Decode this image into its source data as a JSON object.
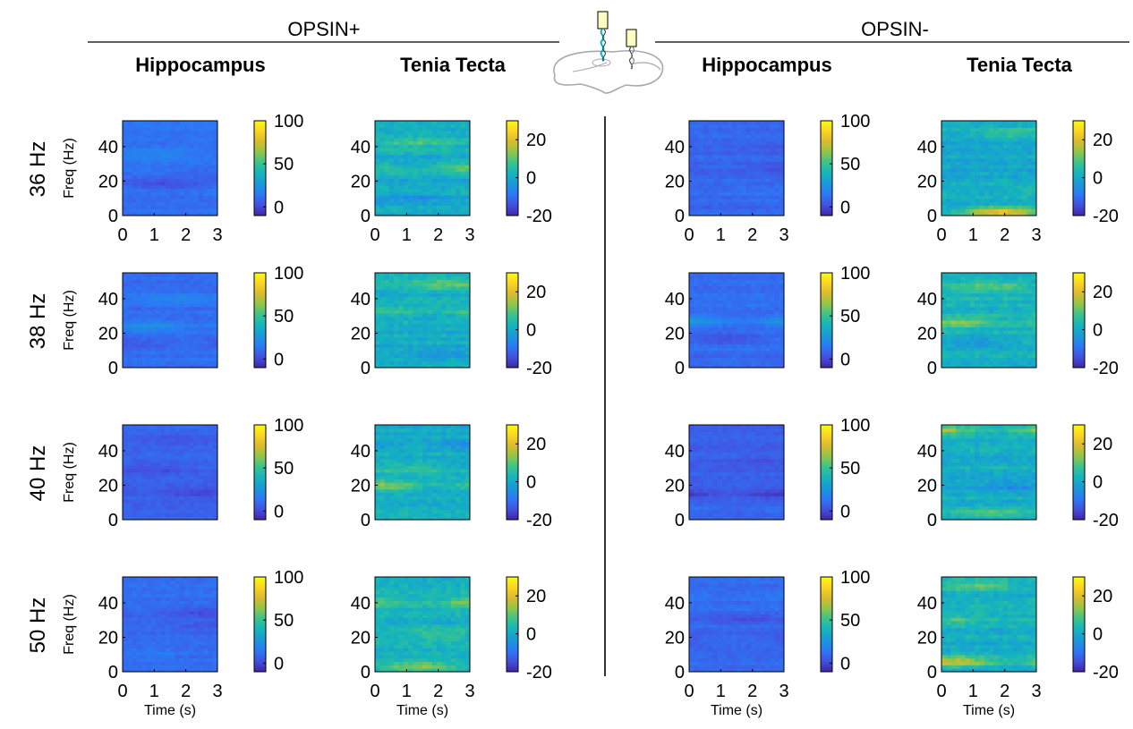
{
  "headers": {
    "groups": [
      "OPSIN+",
      "OPSIN-"
    ],
    "columns": [
      "Hippocampus",
      "Tenia Tecta",
      "Hippocampus",
      "Tenia Tecta"
    ],
    "rows": [
      "36 Hz",
      "38 Hz",
      "40 Hz",
      "50 Hz"
    ]
  },
  "colors": {
    "colormap": [
      "#3e26a8",
      "#4450e0",
      "#2b79f6",
      "#1a98d9",
      "#14b4be",
      "#38c38e",
      "#8fc64a",
      "#d9bb2e",
      "#fbd424",
      "#f9fb0e"
    ]
  },
  "icons": {
    "illustration": "rodent-brain-electrode-icon"
  },
  "chart_data": {
    "type": "heatmap",
    "xlabel": "Time (s)",
    "ylabel": "Freq (Hz)",
    "xlim": [
      0,
      3
    ],
    "ylim": [
      0,
      55
    ],
    "x_ticks": [
      "0",
      "1",
      "2",
      "3"
    ],
    "y_ticks": [
      "0",
      "20",
      "40"
    ],
    "colorbars": {
      "hippocampus": {
        "range": [
          -10,
          100
        ],
        "ticks": [
          "0",
          "50",
          "100"
        ]
      },
      "tenia_tecta": {
        "range": [
          -20,
          30
        ],
        "ticks": [
          "-20",
          "0",
          "20"
        ]
      }
    },
    "panels": [
      {
        "row": "36 Hz",
        "column": "Hippocampus",
        "group": "OPSIN+",
        "base": 12,
        "bands": [
          {
            "freq": 18,
            "delta": -9
          },
          {
            "freq": 36,
            "delta": 9
          },
          {
            "freq": 26,
            "delta": -4
          }
        ]
      },
      {
        "row": "36 Hz",
        "column": "Tenia Tecta",
        "group": "OPSIN+",
        "base": 1,
        "bands": [
          {
            "freq": 28,
            "delta": 11
          },
          {
            "freq": 42,
            "delta": 6
          },
          {
            "freq": 10,
            "delta": -5
          }
        ]
      },
      {
        "row": "36 Hz",
        "column": "Hippocampus",
        "group": "OPSIN-",
        "base": 9,
        "bands": [
          {
            "freq": 28,
            "delta": -5
          },
          {
            "freq": 40,
            "delta": -4
          },
          {
            "freq": 14,
            "delta": 4
          }
        ]
      },
      {
        "row": "36 Hz",
        "column": "Tenia Tecta",
        "group": "OPSIN-",
        "base": 0,
        "bands": [
          {
            "freq": 48,
            "delta": 8
          },
          {
            "freq": 14,
            "delta": 5
          },
          {
            "freq": 2,
            "delta": 22
          }
        ]
      },
      {
        "row": "38 Hz",
        "column": "Hippocampus",
        "group": "OPSIN+",
        "base": 11,
        "bands": [
          {
            "freq": 14,
            "delta": -7
          },
          {
            "freq": 24,
            "delta": 12
          },
          {
            "freq": 40,
            "delta": 7
          }
        ]
      },
      {
        "row": "38 Hz",
        "column": "Tenia Tecta",
        "group": "OPSIN+",
        "base": 1,
        "bands": [
          {
            "freq": 48,
            "delta": 9
          },
          {
            "freq": 32,
            "delta": 6
          },
          {
            "freq": 8,
            "delta": -5
          }
        ]
      },
      {
        "row": "38 Hz",
        "column": "Hippocampus",
        "group": "OPSIN-",
        "base": 11,
        "bands": [
          {
            "freq": 27,
            "delta": 16
          },
          {
            "freq": 17,
            "delta": -8
          },
          {
            "freq": 6,
            "delta": -5
          }
        ]
      },
      {
        "row": "38 Hz",
        "column": "Tenia Tecta",
        "group": "OPSIN-",
        "base": 2,
        "bands": [
          {
            "freq": 26,
            "delta": 10
          },
          {
            "freq": 48,
            "delta": 8
          },
          {
            "freq": 16,
            "delta": -6
          }
        ]
      },
      {
        "row": "40 Hz",
        "column": "Hippocampus",
        "group": "OPSIN+",
        "base": 8,
        "bands": [
          {
            "freq": 16,
            "delta": -8
          },
          {
            "freq": 30,
            "delta": -6
          },
          {
            "freq": 46,
            "delta": -3
          }
        ]
      },
      {
        "row": "40 Hz",
        "column": "Tenia Tecta",
        "group": "OPSIN+",
        "base": 1,
        "bands": [
          {
            "freq": 20,
            "delta": 12
          },
          {
            "freq": 30,
            "delta": 7
          },
          {
            "freq": 44,
            "delta": -6
          }
        ]
      },
      {
        "row": "40 Hz",
        "column": "Hippocampus",
        "group": "OPSIN-",
        "base": 7,
        "bands": [
          {
            "freq": 15,
            "delta": -11
          },
          {
            "freq": 34,
            "delta": -3
          },
          {
            "freq": 6,
            "delta": 5
          }
        ]
      },
      {
        "row": "40 Hz",
        "column": "Tenia Tecta",
        "group": "OPSIN-",
        "base": 1,
        "bands": [
          {
            "freq": 52,
            "delta": 12
          },
          {
            "freq": 4,
            "delta": 8
          },
          {
            "freq": 20,
            "delta": -6
          }
        ]
      },
      {
        "row": "50 Hz",
        "column": "Hippocampus",
        "group": "OPSIN+",
        "base": 10,
        "bands": [
          {
            "freq": 35,
            "delta": -9
          },
          {
            "freq": 27,
            "delta": -6
          },
          {
            "freq": 10,
            "delta": 5
          }
        ]
      },
      {
        "row": "50 Hz",
        "column": "Tenia Tecta",
        "group": "OPSIN+",
        "base": 2,
        "bands": [
          {
            "freq": 40,
            "delta": 9
          },
          {
            "freq": 22,
            "delta": 6
          },
          {
            "freq": 3,
            "delta": 12
          }
        ]
      },
      {
        "row": "50 Hz",
        "column": "Hippocampus",
        "group": "OPSIN-",
        "base": 10,
        "bands": [
          {
            "freq": 30,
            "delta": -7
          },
          {
            "freq": 20,
            "delta": -5
          },
          {
            "freq": 44,
            "delta": 4
          }
        ]
      },
      {
        "row": "50 Hz",
        "column": "Tenia Tecta",
        "group": "OPSIN-",
        "base": 1,
        "bands": [
          {
            "freq": 50,
            "delta": 10
          },
          {
            "freq": 6,
            "delta": 16
          },
          {
            "freq": 30,
            "delta": 6
          }
        ]
      }
    ]
  }
}
